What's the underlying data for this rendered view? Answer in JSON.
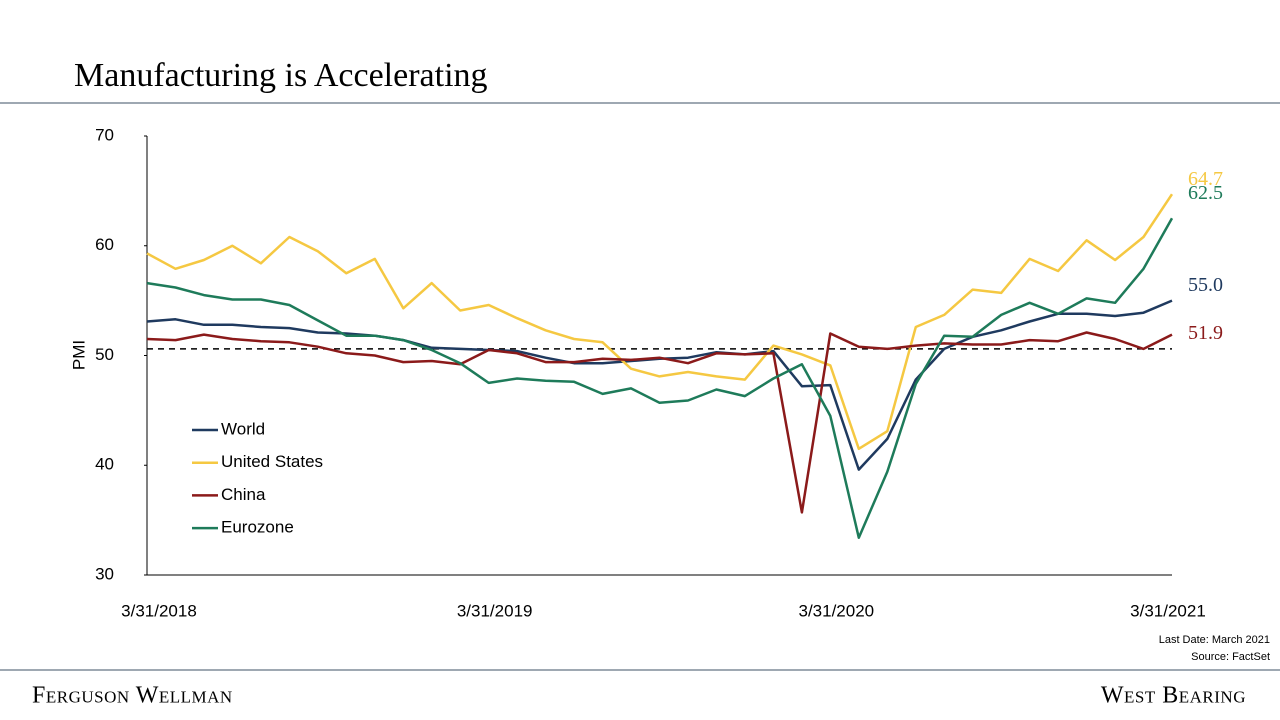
{
  "chart_data": {
    "type": "line",
    "title": "Manufacturing is Accelerating",
    "y_label": "PMI",
    "categories": [
      "3/31/2018",
      null,
      null,
      null,
      null,
      null,
      null,
      null,
      null,
      null,
      null,
      null,
      "3/31/2019",
      null,
      null,
      null,
      null,
      null,
      null,
      null,
      null,
      null,
      null,
      null,
      "3/31/2020",
      null,
      null,
      null,
      null,
      null,
      null,
      null,
      null,
      null,
      null,
      null,
      "3/31/2021"
    ],
    "series": [
      {
        "name": "World",
        "color": "#1f3a5f",
        "values": [
          53.1,
          53.3,
          52.8,
          52.8,
          52.6,
          52.5,
          52.1,
          52.0,
          51.8,
          51.4,
          50.7,
          50.6,
          50.5,
          50.4,
          49.8,
          49.3,
          49.3,
          49.5,
          49.7,
          49.8,
          50.3,
          50.1,
          50.4,
          47.2,
          47.3,
          39.6,
          42.4,
          47.8,
          50.6,
          51.7,
          52.3,
          53.1,
          53.8,
          53.8,
          53.6,
          53.9,
          55.0
        ],
        "value_labels": [
          null,
          null,
          null,
          null,
          null,
          null,
          null,
          null,
          null,
          null,
          null,
          null,
          null,
          null,
          null,
          null,
          null,
          null,
          null,
          null,
          null,
          null,
          null,
          null,
          null,
          null,
          null,
          null,
          null,
          null,
          null,
          null,
          null,
          null,
          null,
          null,
          "55.0"
        ]
      },
      {
        "name": "United States",
        "color": "#f5c842",
        "values": [
          59.3,
          57.9,
          58.7,
          60.0,
          58.4,
          60.8,
          59.5,
          57.5,
          58.8,
          54.3,
          56.6,
          54.1,
          54.6,
          53.4,
          52.3,
          51.5,
          51.2,
          48.8,
          48.1,
          48.5,
          48.1,
          47.8,
          50.9,
          50.1,
          49.1,
          41.5,
          43.1,
          52.6,
          53.7,
          56.0,
          55.7,
          58.8,
          57.7,
          60.5,
          58.7,
          60.8,
          64.7
        ],
        "value_labels": [
          null,
          null,
          null,
          null,
          null,
          null,
          null,
          null,
          null,
          null,
          null,
          null,
          null,
          null,
          null,
          null,
          null,
          null,
          null,
          null,
          null,
          null,
          null,
          null,
          null,
          null,
          null,
          null,
          null,
          null,
          null,
          null,
          null,
          null,
          null,
          null,
          "64.7"
        ]
      },
      {
        "name": "China",
        "color": "#8b1a1a",
        "values": [
          51.5,
          51.4,
          51.9,
          51.5,
          51.3,
          51.2,
          50.8,
          50.2,
          50.0,
          49.4,
          49.5,
          49.2,
          50.5,
          50.2,
          49.4,
          49.4,
          49.7,
          49.6,
          49.8,
          49.3,
          50.2,
          50.1,
          50.2,
          35.7,
          52.0,
          50.8,
          50.6,
          50.9,
          51.1,
          51.0,
          51.0,
          51.4,
          51.3,
          52.1,
          51.5,
          50.6,
          51.9
        ],
        "value_labels": [
          null,
          null,
          null,
          null,
          null,
          null,
          null,
          null,
          null,
          null,
          null,
          null,
          null,
          null,
          null,
          null,
          null,
          null,
          null,
          null,
          null,
          null,
          null,
          null,
          null,
          null,
          null,
          null,
          null,
          null,
          null,
          null,
          null,
          null,
          null,
          null,
          "51.9"
        ]
      },
      {
        "name": "Eurozone",
        "color": "#1e7b5a",
        "values": [
          56.6,
          56.2,
          55.5,
          55.1,
          55.1,
          54.6,
          53.2,
          51.8,
          51.8,
          51.4,
          50.5,
          49.3,
          47.5,
          47.9,
          47.7,
          47.6,
          46.5,
          47.0,
          45.7,
          45.9,
          46.9,
          46.3,
          47.9,
          49.2,
          44.5,
          33.4,
          39.4,
          47.4,
          51.8,
          51.7,
          53.7,
          54.8,
          53.8,
          55.2,
          54.8,
          57.9,
          62.5
        ],
        "value_labels": [
          null,
          null,
          null,
          null,
          null,
          null,
          null,
          null,
          null,
          null,
          null,
          null,
          null,
          null,
          null,
          null,
          null,
          null,
          null,
          null,
          null,
          null,
          null,
          null,
          null,
          null,
          null,
          null,
          null,
          null,
          null,
          null,
          null,
          null,
          null,
          null,
          "62.5"
        ]
      }
    ],
    "reference_line": 50.6,
    "ylim": [
      30,
      70
    ],
    "yticks": [
      30,
      40,
      50,
      60,
      70
    ],
    "legend": "lower-left",
    "notes": [
      "Last Date: March 2021",
      "Source: FactSet"
    ]
  },
  "footer": {
    "left": "Ferguson Wellman",
    "right": "West Bearing"
  }
}
